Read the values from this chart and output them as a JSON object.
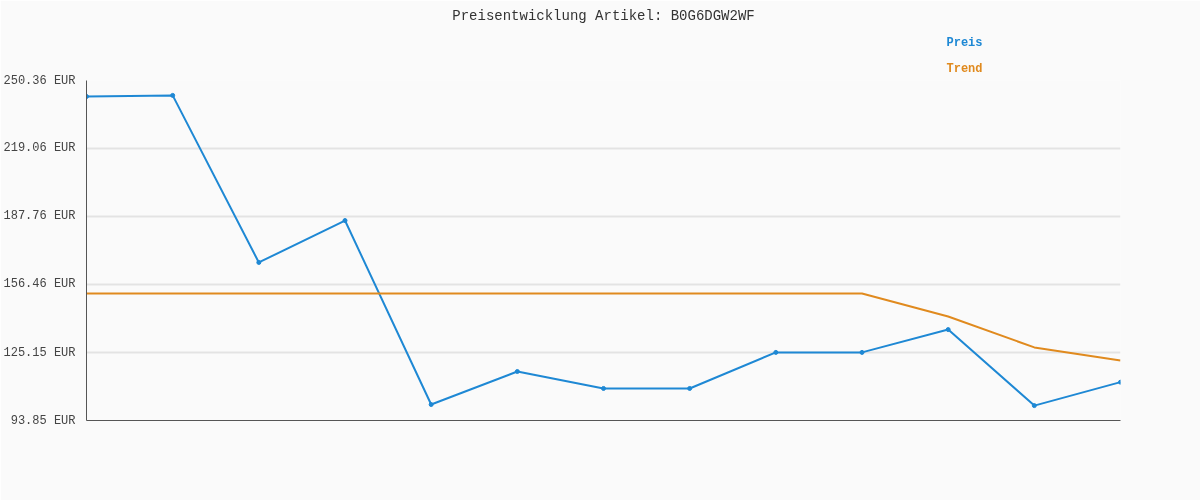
{
  "chart_data": {
    "type": "line",
    "title": "Preisentwicklung Artikel: B0G6DGW2WF",
    "categories": [
      null,
      null,
      null,
      null,
      null,
      null,
      null,
      null,
      null,
      null,
      null,
      null,
      null
    ],
    "series": [
      {
        "name": "Preis",
        "color": "#1e88d4",
        "marker": "circle",
        "values": [
          243.0,
          243.5,
          166.6,
          185.9,
          101.2,
          116.4,
          108.6,
          108.6,
          125.2,
          125.2,
          135.7,
          100.7,
          111.5
        ]
      },
      {
        "name": "Trend",
        "color": "#e08a1e",
        "marker": "none",
        "values": [
          152.3,
          152.3,
          152.3,
          152.3,
          152.3,
          152.3,
          152.3,
          152.3,
          152.3,
          152.3,
          141.7,
          127.5,
          121.5
        ]
      }
    ],
    "ylim": [
      93.85,
      250.36
    ],
    "yticks": [
      {
        "value": 93.85,
        "label": "93.85 EUR"
      },
      {
        "value": 125.15,
        "label": "125.15 EUR"
      },
      {
        "value": 156.46,
        "label": "156.46 EUR"
      },
      {
        "value": 187.76,
        "label": "187.76 EUR"
      },
      {
        "value": 219.06,
        "label": "219.06 EUR"
      },
      {
        "value": 250.36,
        "label": "250.36 EUR"
      }
    ],
    "grid": "y",
    "tick_labels": "y"
  }
}
